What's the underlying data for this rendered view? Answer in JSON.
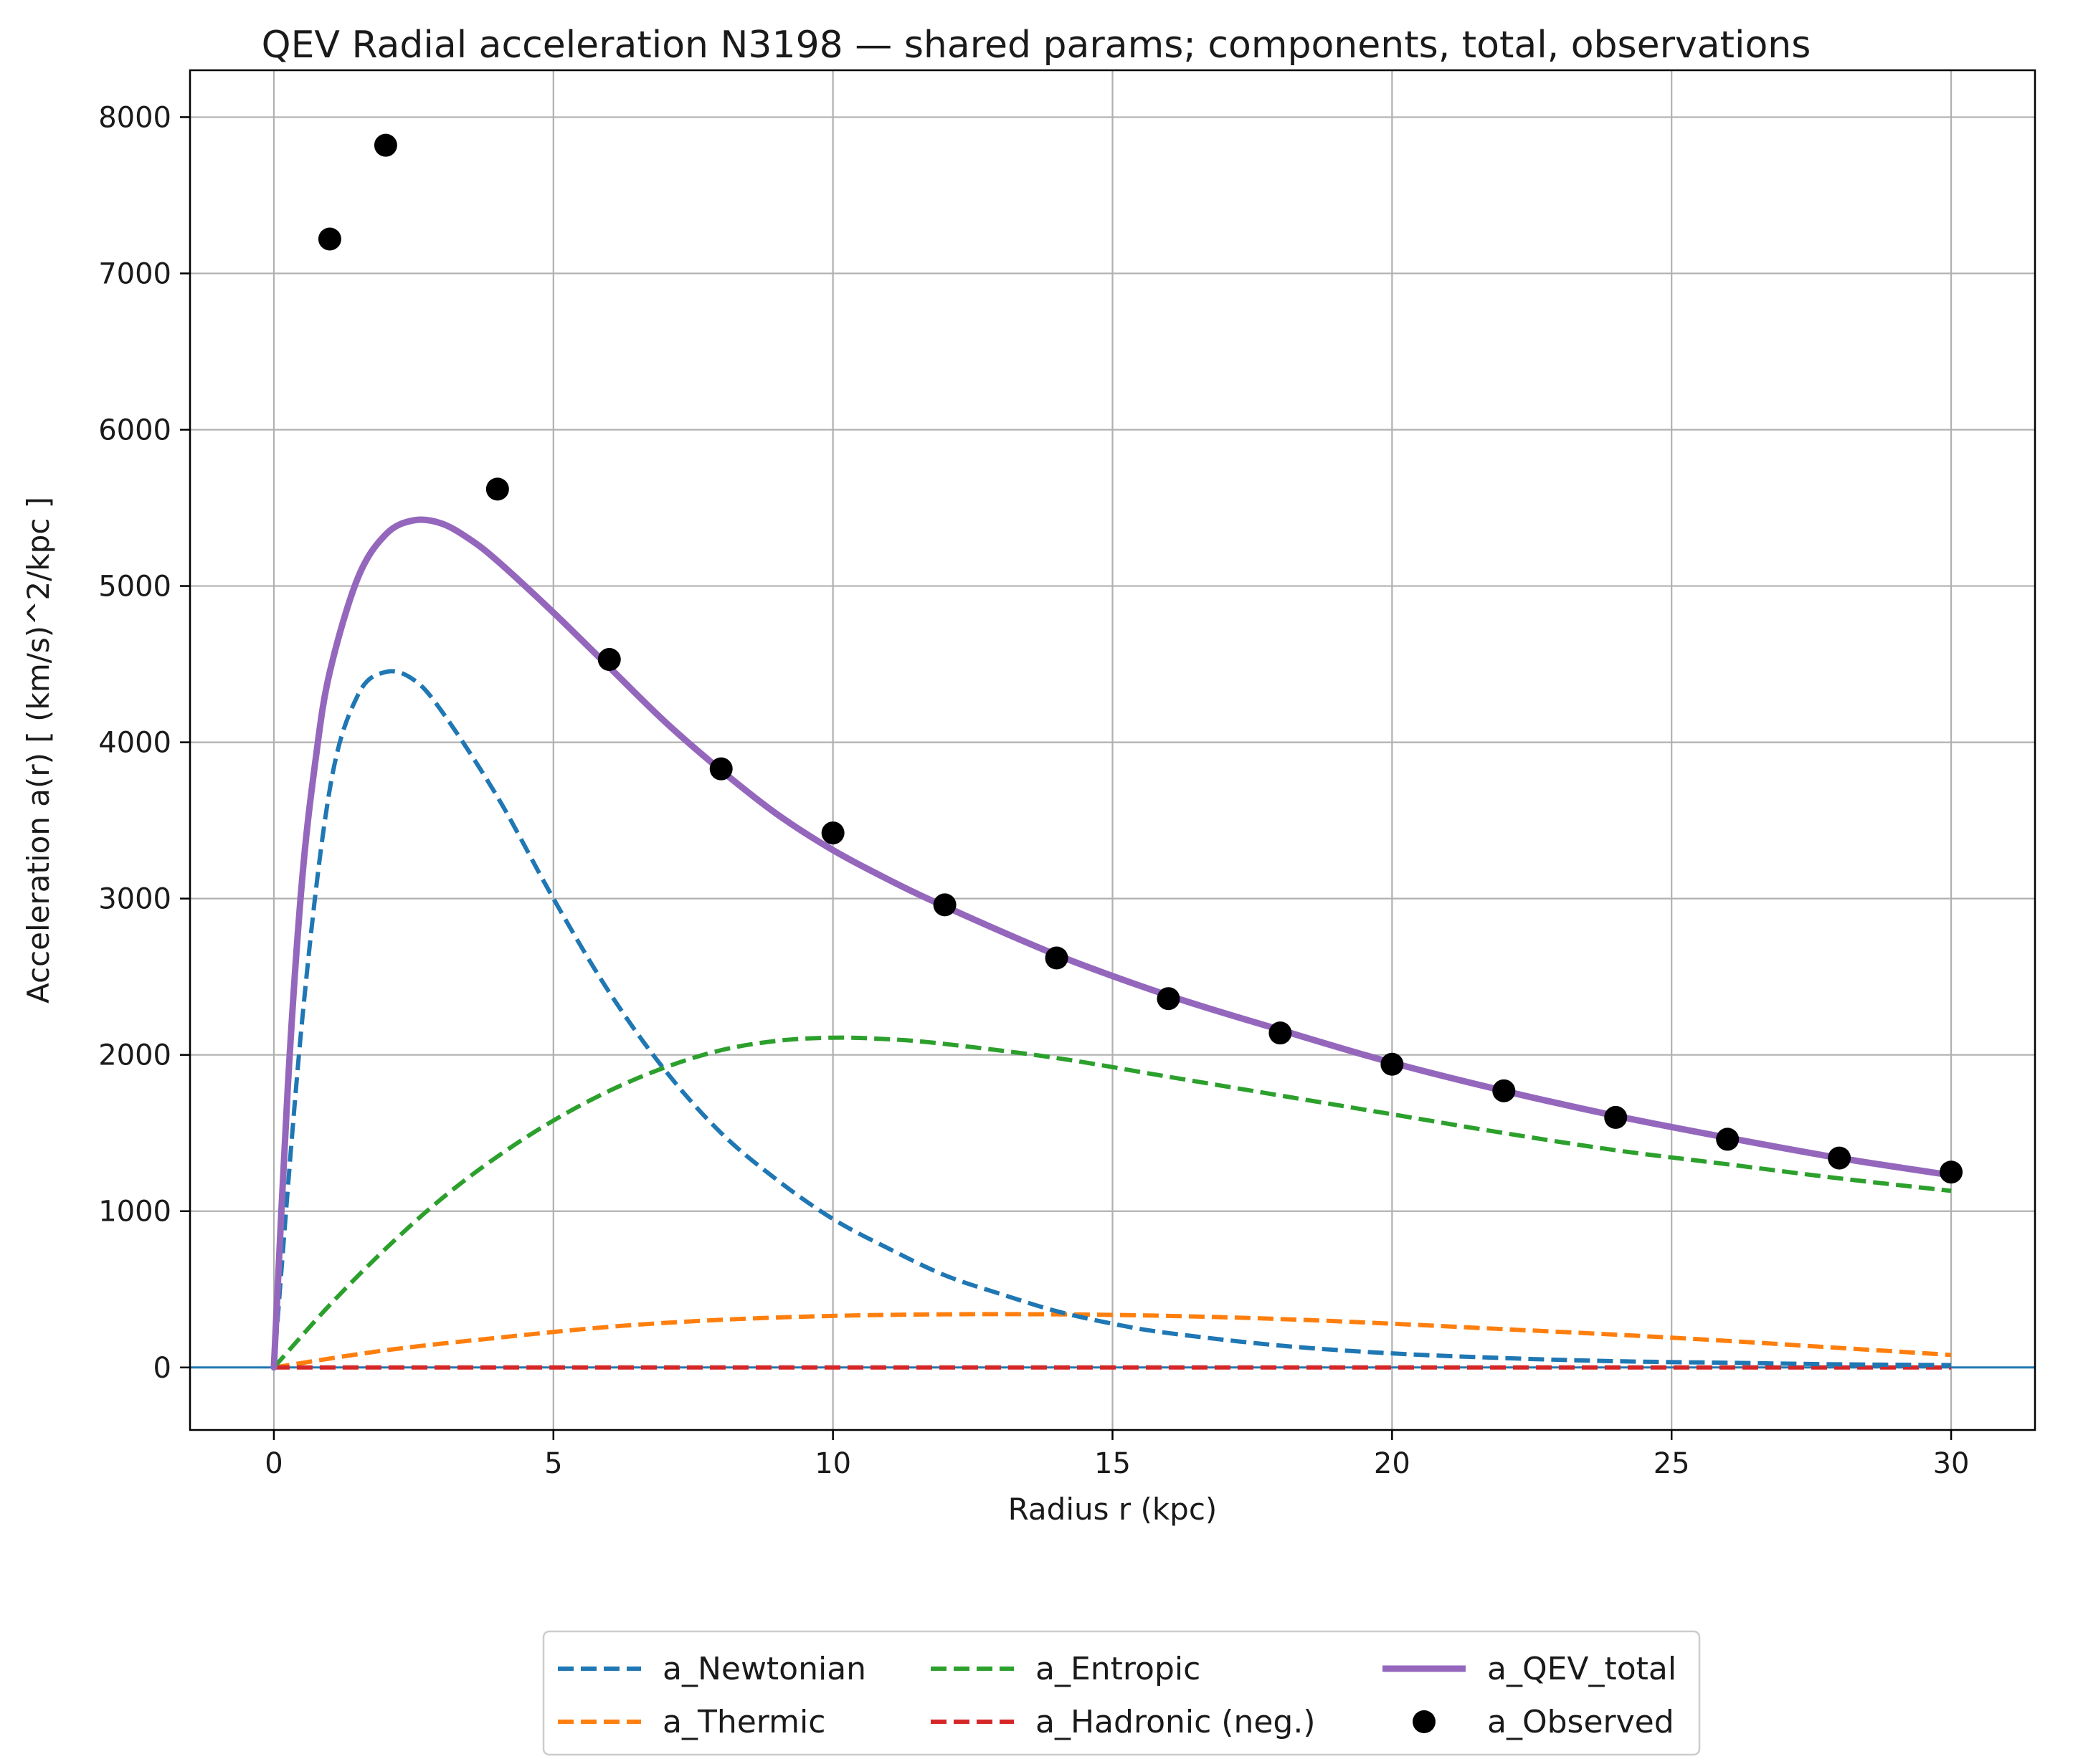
{
  "chart_data": {
    "type": "line",
    "title": "QEV Radial acceleration N3198 — shared params; components, total, observations",
    "xlabel": "Radius r (kpc)",
    "ylabel": "Acceleration a(r) [ (km/s)^2/kpc ]",
    "xlim": [
      -1.5,
      31.5
    ],
    "ylim": [
      -400,
      8300
    ],
    "xticks": [
      0,
      5,
      10,
      15,
      20,
      25,
      30
    ],
    "yticks": [
      0,
      1000,
      2000,
      3000,
      4000,
      5000,
      6000,
      7000,
      8000
    ],
    "grid": true,
    "zero_line": {
      "y": 0,
      "color": "#1f77b4"
    },
    "legend": {
      "placement": "bottom-center, below axes",
      "columns": 3
    },
    "series": [
      {
        "name": "a_Newtonian",
        "style": "dashed",
        "color": "#1f77b4",
        "x": [
          0,
          0.5,
          1,
          1.5,
          2,
          2.5,
          3,
          4,
          5,
          6,
          7,
          8,
          9,
          10,
          11,
          12,
          13,
          14,
          15,
          16,
          18,
          20,
          22,
          24,
          26,
          28,
          30
        ],
        "y": [
          0,
          2200,
          3700,
          4300,
          4450,
          4400,
          4200,
          3650,
          3000,
          2400,
          1900,
          1500,
          1200,
          950,
          760,
          590,
          470,
          360,
          280,
          220,
          140,
          90,
          60,
          40,
          30,
          20,
          15
        ]
      },
      {
        "name": "a_Thermic",
        "style": "dashed",
        "color": "#ff7f0e",
        "x": [
          0,
          2,
          4,
          6,
          8,
          10,
          12,
          14,
          16,
          18,
          20,
          22,
          24,
          26,
          28,
          30
        ],
        "y": [
          0,
          110,
          190,
          260,
          305,
          330,
          340,
          340,
          330,
          310,
          280,
          245,
          210,
          170,
          125,
          80
        ]
      },
      {
        "name": "a_Entropic",
        "style": "dashed",
        "color": "#2ca02c",
        "x": [
          0,
          1,
          2,
          3,
          4,
          5,
          6,
          7,
          8,
          9,
          10,
          11,
          12,
          14,
          16,
          18,
          20,
          22,
          24,
          26,
          28,
          30
        ],
        "y": [
          0,
          400,
          760,
          1080,
          1350,
          1580,
          1770,
          1920,
          2030,
          2090,
          2110,
          2100,
          2070,
          1980,
          1860,
          1740,
          1620,
          1500,
          1390,
          1300,
          1210,
          1130
        ]
      },
      {
        "name": "a_Hadronic (neg.)",
        "style": "dashed",
        "color": "#d62728",
        "x": [
          0,
          5,
          10,
          15,
          20,
          25,
          30
        ],
        "y": [
          0,
          0,
          0,
          0,
          0,
          0,
          0
        ]
      },
      {
        "name": "a_QEV_total",
        "style": "solid",
        "color": "#9467bd",
        "x": [
          0,
          0.25,
          0.5,
          0.75,
          1,
          1.5,
          2,
          2.5,
          3,
          3.5,
          4,
          5,
          6,
          7,
          8,
          9,
          10,
          11,
          12,
          14,
          16,
          18,
          20,
          22,
          24,
          26,
          28,
          30
        ],
        "y": [
          0,
          1800,
          3100,
          3900,
          4450,
          5050,
          5330,
          5420,
          5400,
          5300,
          5160,
          4830,
          4480,
          4130,
          3820,
          3540,
          3310,
          3120,
          2950,
          2640,
          2380,
          2160,
          1950,
          1770,
          1610,
          1470,
          1340,
          1230
        ]
      },
      {
        "name": "a_Observed",
        "style": "points",
        "color": "#000000",
        "x": [
          1,
          2,
          4,
          6,
          8,
          10,
          12,
          14,
          16,
          18,
          20,
          22,
          24,
          26,
          28,
          30
        ],
        "y": [
          7220,
          7820,
          5620,
          4530,
          3830,
          3420,
          2960,
          2620,
          2360,
          2140,
          1940,
          1770,
          1600,
          1460,
          1340,
          1250
        ]
      }
    ]
  }
}
